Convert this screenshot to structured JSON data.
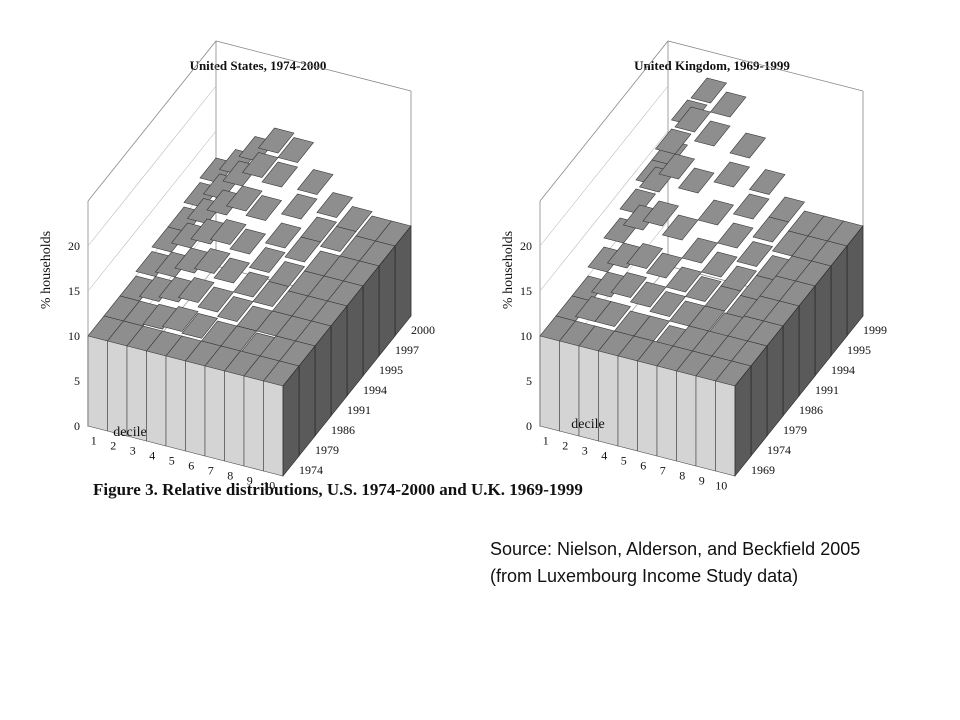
{
  "chart_data": [
    {
      "type": "3d-surface",
      "title": "United States, 1974-2000",
      "xlabel": "decile",
      "ylabel": "% households",
      "zticks": [
        "0",
        "5",
        "10",
        "15",
        "20"
      ],
      "zlim": [
        0,
        20
      ],
      "deciles": [
        "1",
        "2",
        "3",
        "4",
        "5",
        "6",
        "7",
        "8",
        "9",
        "10"
      ],
      "years": [
        "1974",
        "1979",
        "1986",
        "1991",
        "1994",
        "1995",
        "1997",
        "2000"
      ],
      "values": [
        [
          10,
          10,
          10,
          10,
          10,
          10,
          10,
          10,
          10,
          10
        ],
        [
          10,
          10,
          10.2,
          10.5,
          10.3,
          10,
          10,
          9.8,
          10,
          10
        ],
        [
          10,
          10.5,
          11,
          11.5,
          11,
          10.5,
          10,
          10,
          10,
          10
        ],
        [
          10.5,
          11,
          12,
          12.5,
          12,
          11,
          10.5,
          10,
          10,
          10
        ],
        [
          11,
          12,
          13,
          13.5,
          13,
          11.5,
          10.5,
          10,
          10,
          10
        ],
        [
          11,
          12.5,
          14,
          15,
          14.5,
          12,
          11,
          10,
          10,
          10
        ],
        [
          11.5,
          13,
          15,
          16.5,
          16,
          13,
          11,
          10.5,
          10,
          10
        ],
        [
          12,
          13.5,
          15.5,
          17,
          16.5,
          13.5,
          11.5,
          10.5,
          10,
          10
        ]
      ]
    },
    {
      "type": "3d-surface",
      "title": "United Kingdom, 1969-1999",
      "xlabel": "decile",
      "ylabel": "% households",
      "zticks": [
        "0",
        "5",
        "10",
        "15",
        "20"
      ],
      "zlim": [
        0,
        20
      ],
      "deciles": [
        "1",
        "2",
        "3",
        "4",
        "5",
        "6",
        "7",
        "8",
        "9",
        "10"
      ],
      "years": [
        "1969",
        "1974",
        "1979",
        "1986",
        "1991",
        "1994",
        "1995",
        "1999"
      ],
      "values": [
        [
          10,
          10,
          10,
          10,
          10,
          10,
          10,
          10,
          10,
          10
        ],
        [
          10,
          10.5,
          10.5,
          10,
          10,
          9.5,
          10,
          10,
          10,
          10
        ],
        [
          10,
          11,
          11.5,
          11,
          10.5,
          10,
          10,
          9.8,
          10,
          10
        ],
        [
          11,
          12,
          12.5,
          12,
          11,
          10.5,
          10,
          9.5,
          10,
          10
        ],
        [
          12,
          14,
          15,
          14,
          12,
          11,
          10,
          9.5,
          10,
          10
        ],
        [
          13,
          16,
          18,
          17,
          14,
          12,
          10.5,
          9.5,
          10,
          10
        ],
        [
          14,
          18,
          21,
          20,
          16,
          13,
          11,
          10,
          10,
          10
        ],
        [
          14,
          19,
          22,
          21,
          17,
          13.5,
          11,
          10,
          10,
          10
        ]
      ]
    }
  ],
  "figure": {
    "caption": "Figure 3. Relative distributions, U.S. 1974-2000 and U.K. 1969-1999"
  },
  "source": {
    "line1": "Source: Nielson, Alderson, and Beckfield 2005",
    "line2": "(from Luxembourg Income Study data)"
  }
}
